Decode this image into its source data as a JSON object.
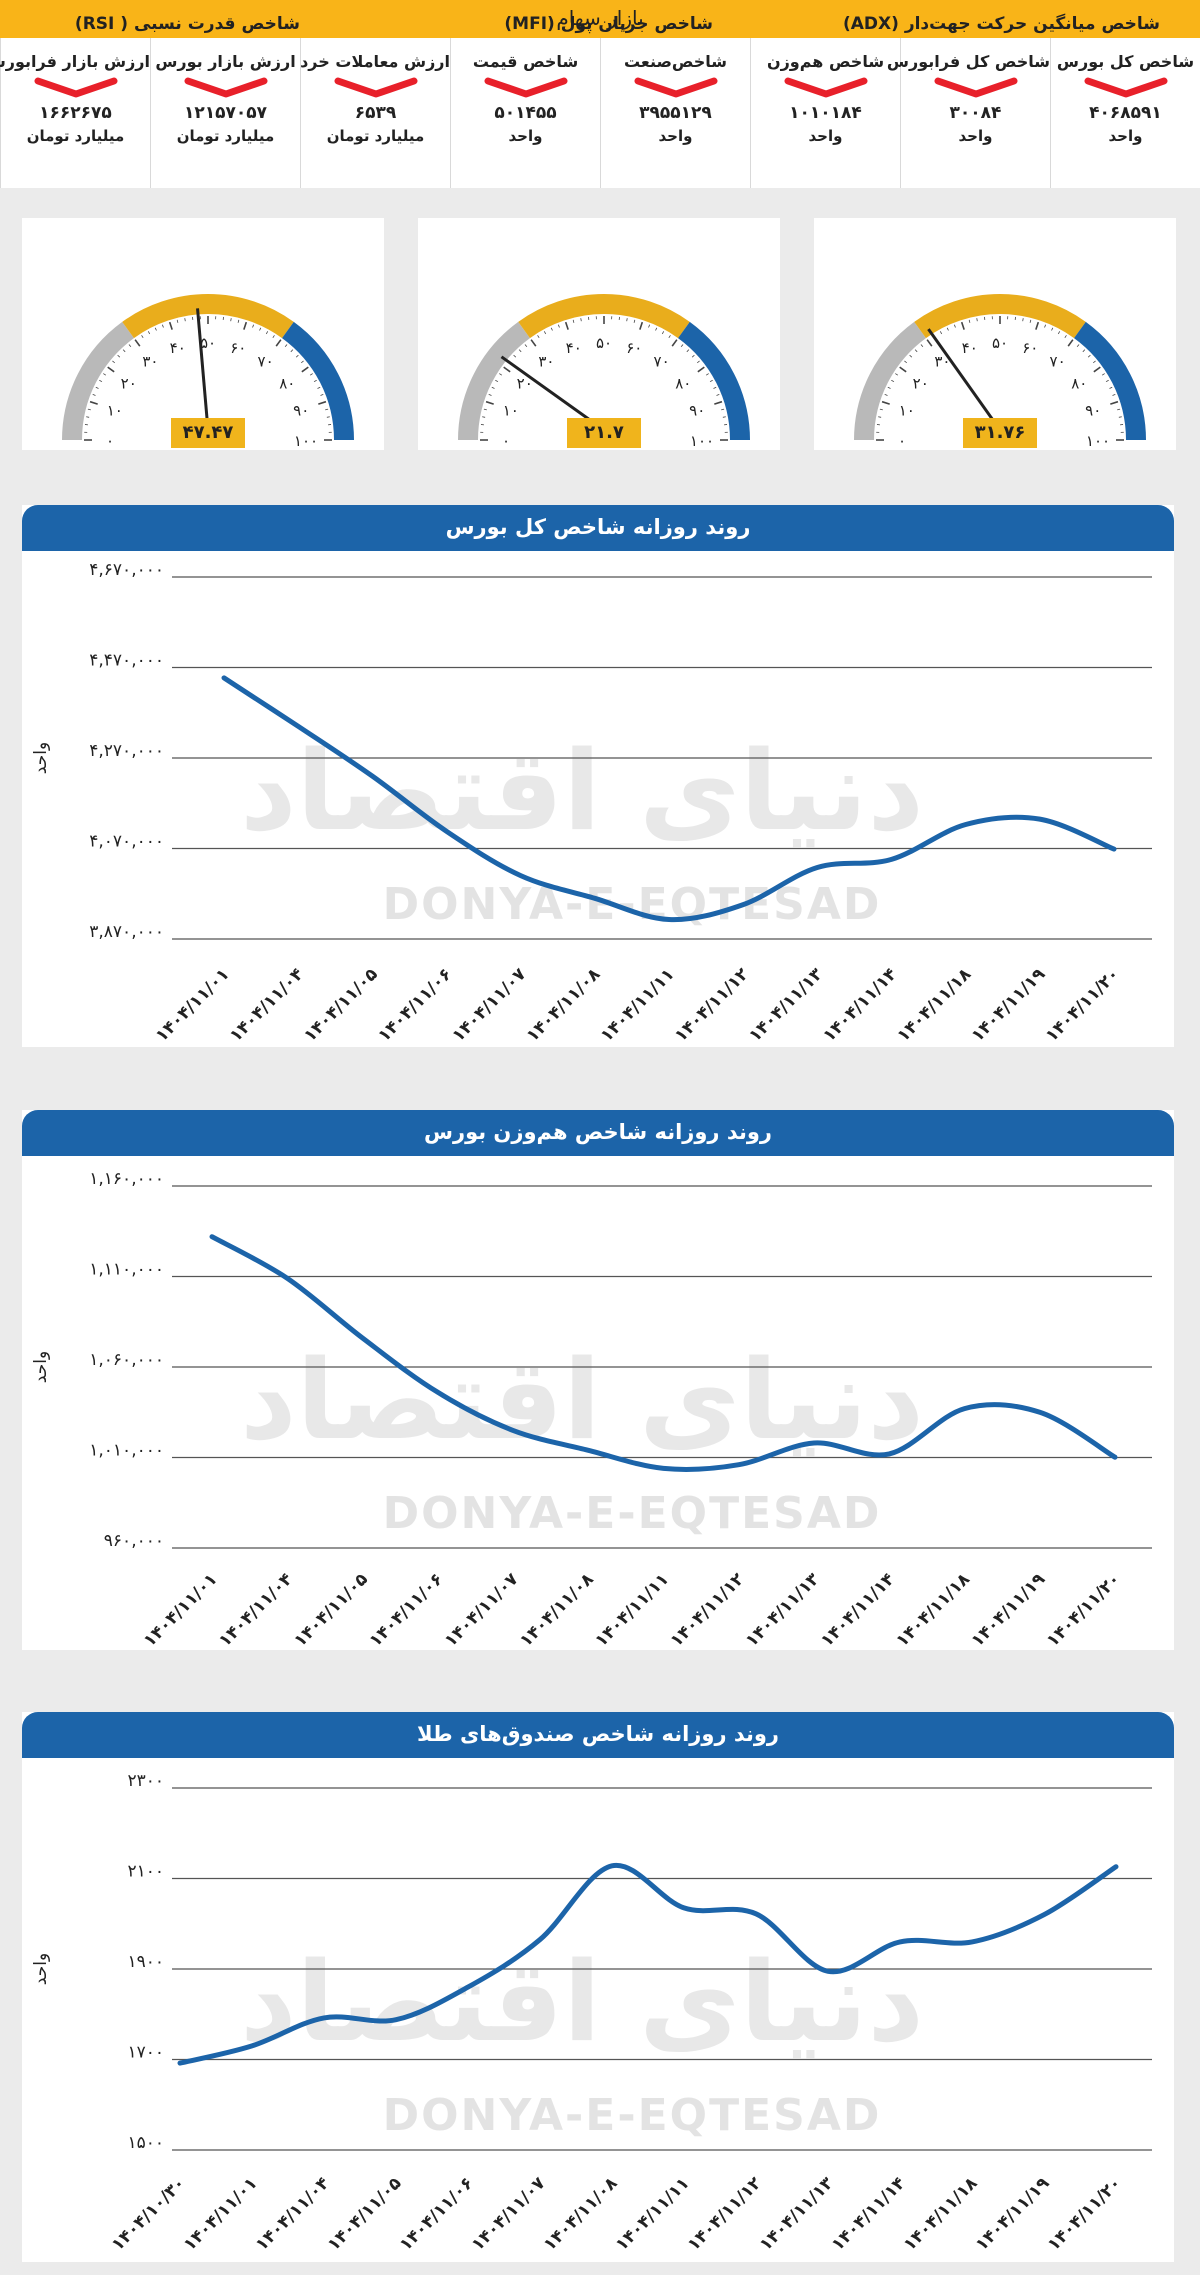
{
  "header": {
    "title": "بازار سهام"
  },
  "colors": {
    "accent": "#f9b418",
    "blue": "#1c64a9",
    "down": "#e8202a",
    "gauge_gray": "#b9b9b9",
    "gauge_gold": "#e9ad1c",
    "gauge_blue": "#1c64a9"
  },
  "stats": [
    {
      "label": "شاخص کل بورس",
      "value": "۴۰۶۸۵۹۱",
      "unit": "واحد",
      "trend": "down"
    },
    {
      "label": "شاخص کل فرابورس",
      "value": "۳۰۰۸۴",
      "unit": "واحد",
      "trend": "down"
    },
    {
      "label": "شاخص هم‌وزن",
      "value": "۱۰۱۰۱۸۴",
      "unit": "واحد",
      "trend": "down"
    },
    {
      "label": "شاخص‌صنعت",
      "value": "۳۹۵۵۱۲۹",
      "unit": "واحد",
      "trend": "down"
    },
    {
      "label": "شاخص قیمت",
      "value": "۵۰۱۴۵۵",
      "unit": "واحد",
      "trend": "down"
    },
    {
      "label": "ارزش معاملات خرد",
      "value": "۶۵۳۹",
      "unit": "میلیارد تومان",
      "trend": "down"
    },
    {
      "label": "ارزش بازار بورس",
      "value": "۱۲۱۵۷۰۵۷",
      "unit": "میلیارد تومان",
      "trend": "down"
    },
    {
      "label": "ارزش بازار فرابورس",
      "value": "۱۶۶۲۶۷۵",
      "unit": "میلیارد تومان",
      "trend": "down"
    }
  ],
  "gauges": [
    {
      "title": "شاخص میانگین حرکت جهت‌دار (ADX)",
      "value": 31.76,
      "value_label": "۳۱.۷۶"
    },
    {
      "title": "شاخص جریان پول (MFI)",
      "value": 21.7,
      "value_label": "۲۱.۷"
    },
    {
      "title": "شاخص قدرت نسبی ( RSI)",
      "value": 47.47,
      "value_label": "۴۷.۴۷"
    }
  ],
  "gauge_ticks": [
    "۰",
    "۱۰",
    "۲۰",
    "۳۰",
    "۴۰",
    "۵۰",
    "۶۰",
    "۷۰",
    "۸۰",
    "۹۰",
    "۱۰۰"
  ],
  "watermark": {
    "latin": "DONYA-E-EQTESAD",
    "persian": "دنیای اقتصاد"
  },
  "chart_data": [
    {
      "type": "line",
      "title": "روند روزانه شاخص کل بورس",
      "ylabel": "واحد",
      "ylim": [
        3870000,
        4670000
      ],
      "yticks": [
        3870000,
        4070000,
        4270000,
        4470000,
        4670000
      ],
      "ytick_labels": [
        "۳,۸۷۰,۰۰۰",
        "۴,۰۷۰,۰۰۰",
        "۴,۲۷۰,۰۰۰",
        "۴,۴۷۰,۰۰۰",
        "۴,۶۷۰,۰۰۰"
      ],
      "categories": [
        "۱۴۰۴/۱۱/۰۱",
        "۱۴۰۴/۱۱/۰۴",
        "۱۴۰۴/۱۱/۰۵",
        "۱۴۰۴/۱۱/۰۶",
        "۱۴۰۴/۱۱/۰۷",
        "۱۴۰۴/۱۱/۰۸",
        "۱۴۰۴/۱۱/۱۱",
        "۱۴۰۴/۱۱/۱۲",
        "۱۴۰۴/۱۱/۱۳",
        "۱۴۰۴/۱۱/۱۴",
        "۱۴۰۴/۱۱/۱۸",
        "۱۴۰۴/۱۱/۱۹",
        "۱۴۰۴/۱۱/۲۰"
      ],
      "values": [
        4447000,
        4340000,
        4230000,
        4108000,
        4010000,
        3960000,
        3913000,
        3946000,
        4028000,
        4046000,
        4123000,
        4135000,
        4068591
      ]
    },
    {
      "type": "line",
      "title": "روند روزانه شاخص هم‌وزن بورس",
      "ylabel": "واحد",
      "ylim": [
        960000,
        1160000
      ],
      "yticks": [
        960000,
        1010000,
        1060000,
        1110000,
        1160000
      ],
      "ytick_labels": [
        "۹۶۰,۰۰۰",
        "۱,۰۱۰,۰۰۰",
        "۱,۰۶۰,۰۰۰",
        "۱,۱۱۰,۰۰۰",
        "۱,۱۶۰,۰۰۰"
      ],
      "categories": [
        "۱۴۰۴/۱۱/۰۱",
        "۱۴۰۴/۱۱/۰۴",
        "۱۴۰۴/۱۱/۰۵",
        "۱۴۰۴/۱۱/۰۶",
        "۱۴۰۴/۱۱/۰۷",
        "۱۴۰۴/۱۱/۰۸",
        "۱۴۰۴/۱۱/۱۱",
        "۱۴۰۴/۱۱/۱۲",
        "۱۴۰۴/۱۱/۱۳",
        "۱۴۰۴/۱۱/۱۴",
        "۱۴۰۴/۱۱/۱۸",
        "۱۴۰۴/۱۱/۱۹",
        "۱۴۰۴/۱۱/۲۰"
      ],
      "values": [
        1132000,
        1109000,
        1076000,
        1046000,
        1025000,
        1014000,
        1004000,
        1006000,
        1018000,
        1012000,
        1037000,
        1035000,
        1010184
      ]
    },
    {
      "type": "line",
      "title": "روند روزانه شاخص صندوق‌های طلا",
      "ylabel": "واحد",
      "ylim": [
        1500,
        2300
      ],
      "yticks": [
        1500,
        1700,
        1900,
        2100,
        2300
      ],
      "ytick_labels": [
        "۱۵۰۰",
        "۱۷۰۰",
        "۱۹۰۰",
        "۲۱۰۰",
        "۲۳۰۰"
      ],
      "categories": [
        "۱۴۰۴/۱۰/۳۰",
        "۱۴۰۴/۱۱/۰۱",
        "۱۴۰۴/۱۱/۰۴",
        "۱۴۰۴/۱۱/۰۵",
        "۱۴۰۴/۱۱/۰۶",
        "۱۴۰۴/۱۱/۰۷",
        "۱۴۰۴/۱۱/۰۸",
        "۱۴۰۴/۱۱/۱۱",
        "۱۴۰۴/۱۱/۱۲",
        "۱۴۰۴/۱۱/۱۳",
        "۱۴۰۴/۱۱/۱۴",
        "۱۴۰۴/۱۱/۱۸",
        "۱۴۰۴/۱۱/۱۹",
        "۱۴۰۴/۱۱/۲۰"
      ],
      "values": [
        1692,
        1730,
        1792,
        1788,
        1860,
        1965,
        2128,
        2035,
        2022,
        1895,
        1960,
        1960,
        2020,
        2126
      ]
    }
  ]
}
